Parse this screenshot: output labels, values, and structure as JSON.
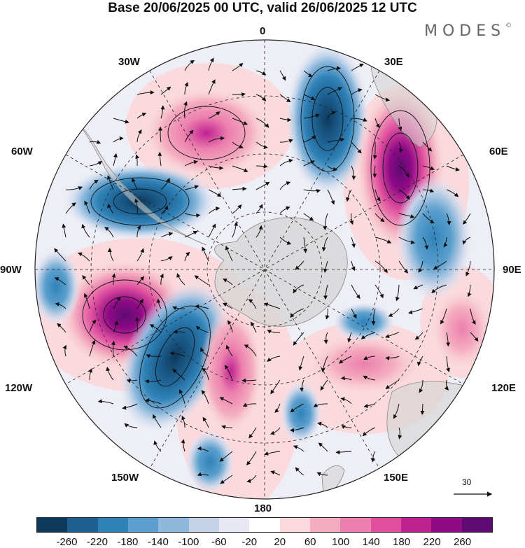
{
  "title": "Base 20/06/2025 00 UTC, valid 26/06/2025 12 UTC",
  "logo": {
    "text": "MODES",
    "mark": "©"
  },
  "longitude_labels": {
    "top": "0",
    "top_left": "30W",
    "top_right": "30E",
    "left_upper": "60W",
    "right_upper": "60E",
    "left": "90W",
    "right": "90E",
    "left_lower": "120W",
    "right_lower": "120E",
    "bottom_left": "150W",
    "bottom_right": "150E",
    "bottom": "180"
  },
  "reference_vector": {
    "label": "30"
  },
  "colorbar": {
    "colors": [
      "#0d3a5c",
      "#1d5f8f",
      "#2f82b8",
      "#5a9fcd",
      "#8fb9dc",
      "#c5d3e8",
      "#e8e8f4",
      "#ffffff",
      "#fadadd",
      "#f4adc0",
      "#ec7fad",
      "#df4f9e",
      "#c02191",
      "#8f0a86",
      "#5e0a73"
    ],
    "labels": [
      "-260",
      "-220",
      "-180",
      "-140",
      "-100",
      "-60",
      "-20",
      "20",
      "60",
      "100",
      "140",
      "180",
      "220",
      "260"
    ]
  },
  "map": {
    "projection": "south polar stereographic",
    "land_color": "#d4d4d4",
    "anomaly_centers": [
      {
        "name": "neg-atlantic-south",
        "color": "#0d3a5c"
      },
      {
        "name": "pos-east-atlantic",
        "color": "#8f0a86"
      },
      {
        "name": "pos-south-atlantic",
        "color": "#df4f9e"
      },
      {
        "name": "neg-south-america",
        "color": "#1d5f8f"
      },
      {
        "name": "pos-southeast-pacific",
        "color": "#8f0a86"
      },
      {
        "name": "neg-south-pacific",
        "color": "#1d5f8f"
      }
    ]
  }
}
